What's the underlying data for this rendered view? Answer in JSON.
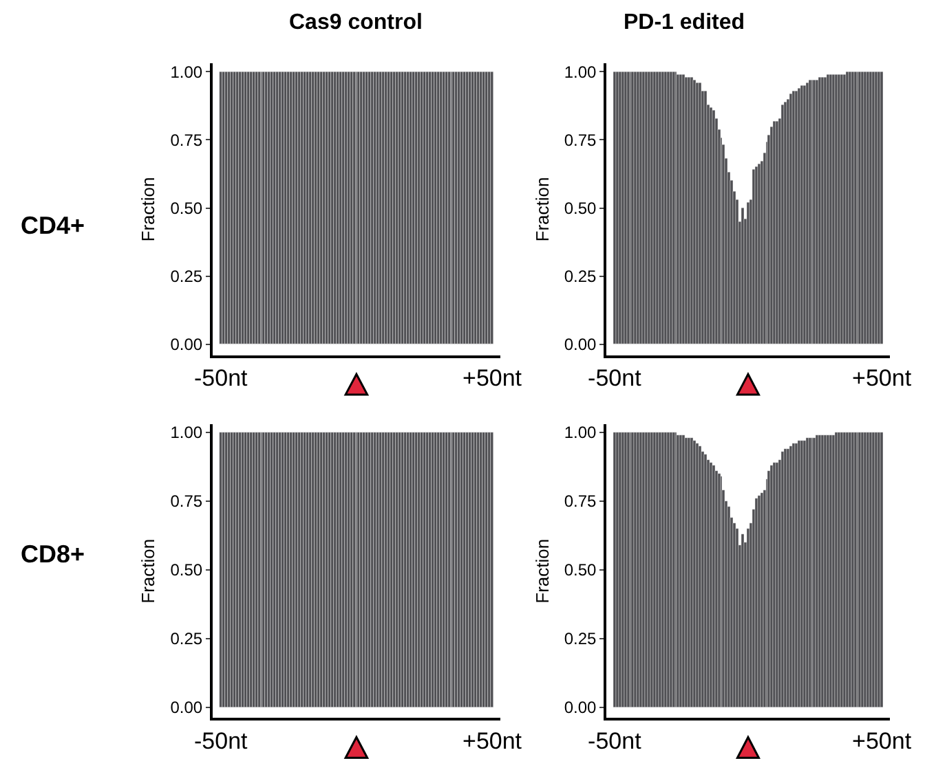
{
  "chart_data": [
    {
      "type": "bar",
      "title": "Cas9 control",
      "ylabel": "Fraction",
      "annotations": [
        "CD4+"
      ],
      "color": "#505054",
      "ylim": [
        -0.04,
        1.03
      ],
      "yticks": [
        {
          "value": 0,
          "label": "0.00"
        },
        {
          "value": 0.25,
          "label": "0.25"
        },
        {
          "value": 0.5,
          "label": "0.50"
        },
        {
          "value": 0.75,
          "label": "0.75"
        },
        {
          "value": 1,
          "label": "1.00"
        }
      ],
      "categories": [
        "-50nt",
        null,
        null,
        null,
        null,
        null,
        null,
        null,
        null,
        null,
        null,
        null,
        null,
        null,
        null,
        null,
        null,
        null,
        null,
        null,
        null,
        null,
        null,
        null,
        null,
        null,
        null,
        null,
        null,
        null,
        null,
        null,
        null,
        null,
        null,
        null,
        null,
        null,
        null,
        null,
        null,
        null,
        null,
        null,
        null,
        null,
        null,
        null,
        null,
        null,
        null,
        null,
        null,
        null,
        null,
        null,
        null,
        null,
        null,
        null,
        null,
        null,
        null,
        null,
        null,
        null,
        null,
        null,
        null,
        null,
        null,
        null,
        null,
        null,
        null,
        null,
        null,
        null,
        null,
        null,
        null,
        null,
        null,
        null,
        null,
        null,
        null,
        null,
        null,
        null,
        null,
        null,
        null,
        null,
        null,
        null,
        null,
        null,
        null,
        null,
        "+50nt"
      ],
      "values": [
        1,
        1,
        1,
        1,
        1,
        1,
        1,
        1,
        1,
        1,
        1,
        1,
        1,
        1,
        1,
        1,
        1,
        1,
        1,
        1,
        1,
        1,
        1,
        1,
        1,
        1,
        1,
        1,
        1,
        1,
        1,
        1,
        1,
        1,
        1,
        1,
        1,
        1,
        1,
        1,
        1,
        1,
        1,
        1,
        1,
        1,
        1,
        1,
        1,
        1,
        1,
        1,
        1,
        1,
        1,
        1,
        1,
        1,
        1,
        1,
        1,
        1,
        1,
        1,
        1,
        1,
        1,
        1,
        1,
        1,
        1,
        1,
        1,
        1,
        1,
        1,
        1,
        1,
        1,
        1,
        1,
        1,
        1,
        1,
        1,
        1,
        1,
        1,
        1,
        1,
        1,
        1,
        1,
        1,
        1,
        1,
        1,
        1,
        1,
        1,
        1
      ]
    },
    {
      "type": "bar",
      "title": "PD-1 edited",
      "ylabel": "Fraction",
      "color": "#505054",
      "ylim": [
        -0.04,
        1.03
      ],
      "yticks": [
        {
          "value": 0,
          "label": "0.00"
        },
        {
          "value": 0.25,
          "label": "0.25"
        },
        {
          "value": 0.5,
          "label": "0.50"
        },
        {
          "value": 0.75,
          "label": "0.75"
        },
        {
          "value": 1,
          "label": "1.00"
        }
      ],
      "categories": [
        "-50nt",
        null,
        null,
        null,
        null,
        null,
        null,
        null,
        null,
        null,
        null,
        null,
        null,
        null,
        null,
        null,
        null,
        null,
        null,
        null,
        null,
        null,
        null,
        null,
        null,
        null,
        null,
        null,
        null,
        null,
        null,
        null,
        null,
        null,
        null,
        null,
        null,
        null,
        null,
        null,
        null,
        null,
        null,
        null,
        null,
        null,
        null,
        null,
        null,
        null,
        null,
        null,
        null,
        null,
        null,
        null,
        null,
        null,
        null,
        null,
        null,
        null,
        null,
        null,
        null,
        null,
        null,
        null,
        null,
        null,
        null,
        null,
        null,
        null,
        null,
        null,
        null,
        null,
        null,
        null,
        null,
        null,
        null,
        null,
        null,
        null,
        null,
        null,
        null,
        null,
        null,
        null,
        null,
        null,
        null,
        null,
        null,
        null,
        null,
        null,
        "+50nt"
      ],
      "values": [
        1,
        1,
        1,
        1,
        1,
        1,
        1,
        1,
        1,
        1,
        1,
        1,
        1,
        1,
        1,
        1,
        1,
        1,
        1,
        1,
        1,
        1,
        1,
        1,
        0.99,
        0.99,
        0.99,
        0.98,
        0.98,
        0.98,
        0.97,
        0.96,
        0.96,
        0.93,
        0.93,
        0.88,
        0.87,
        0.86,
        0.83,
        0.79,
        0.76,
        0.73,
        0.68,
        0.63,
        0.6,
        0.56,
        0.53,
        0.45,
        0.5,
        0.46,
        0.52,
        0.53,
        0.64,
        0.65,
        0.66,
        0.67,
        0.7,
        0.74,
        0.77,
        0.8,
        0.82,
        0.82,
        0.83,
        0.88,
        0.89,
        0.9,
        0.92,
        0.93,
        0.93,
        0.94,
        0.95,
        0.95,
        0.96,
        0.97,
        0.97,
        0.97,
        0.97,
        0.98,
        0.98,
        0.98,
        0.99,
        0.99,
        0.99,
        0.99,
        0.99,
        0.99,
        0.99,
        1,
        1,
        1,
        1,
        1,
        1,
        1,
        1,
        1,
        1,
        1,
        1,
        1,
        1
      ]
    },
    {
      "type": "bar",
      "ylabel": "Fraction",
      "annotations": [
        "CD8+"
      ],
      "color": "#505054",
      "ylim": [
        -0.04,
        1.03
      ],
      "yticks": [
        {
          "value": 0,
          "label": "0.00"
        },
        {
          "value": 0.25,
          "label": "0.25"
        },
        {
          "value": 0.5,
          "label": "0.50"
        },
        {
          "value": 0.75,
          "label": "0.75"
        },
        {
          "value": 1,
          "label": "1.00"
        }
      ],
      "categories": [
        "-50nt",
        null,
        null,
        null,
        null,
        null,
        null,
        null,
        null,
        null,
        null,
        null,
        null,
        null,
        null,
        null,
        null,
        null,
        null,
        null,
        null,
        null,
        null,
        null,
        null,
        null,
        null,
        null,
        null,
        null,
        null,
        null,
        null,
        null,
        null,
        null,
        null,
        null,
        null,
        null,
        null,
        null,
        null,
        null,
        null,
        null,
        null,
        null,
        null,
        null,
        null,
        null,
        null,
        null,
        null,
        null,
        null,
        null,
        null,
        null,
        null,
        null,
        null,
        null,
        null,
        null,
        null,
        null,
        null,
        null,
        null,
        null,
        null,
        null,
        null,
        null,
        null,
        null,
        null,
        null,
        null,
        null,
        null,
        null,
        null,
        null,
        null,
        null,
        null,
        null,
        null,
        null,
        null,
        null,
        null,
        null,
        null,
        null,
        null,
        null,
        "+50nt"
      ],
      "values": [
        1,
        1,
        1,
        1,
        1,
        1,
        1,
        1,
        1,
        1,
        1,
        1,
        1,
        1,
        1,
        1,
        1,
        1,
        1,
        1,
        1,
        1,
        1,
        1,
        1,
        1,
        1,
        1,
        1,
        1,
        1,
        1,
        1,
        1,
        1,
        1,
        1,
        1,
        1,
        1,
        1,
        1,
        1,
        1,
        1,
        1,
        1,
        1,
        1,
        1,
        1,
        1,
        1,
        1,
        1,
        1,
        1,
        1,
        1,
        1,
        1,
        1,
        1,
        1,
        1,
        1,
        1,
        1,
        1,
        1,
        1,
        1,
        1,
        1,
        1,
        1,
        1,
        1,
        1,
        1,
        1,
        1,
        1,
        1,
        1,
        1,
        1,
        1,
        1,
        1,
        1,
        1,
        1,
        1,
        1,
        1,
        1,
        1,
        1,
        1,
        1
      ]
    },
    {
      "type": "bar",
      "ylabel": "Fraction",
      "color": "#505054",
      "ylim": [
        -0.04,
        1.03
      ],
      "yticks": [
        {
          "value": 0,
          "label": "0.00"
        },
        {
          "value": 0.25,
          "label": "0.25"
        },
        {
          "value": 0.5,
          "label": "0.50"
        },
        {
          "value": 0.75,
          "label": "0.75"
        },
        {
          "value": 1,
          "label": "1.00"
        }
      ],
      "categories": [
        "-50nt",
        null,
        null,
        null,
        null,
        null,
        null,
        null,
        null,
        null,
        null,
        null,
        null,
        null,
        null,
        null,
        null,
        null,
        null,
        null,
        null,
        null,
        null,
        null,
        null,
        null,
        null,
        null,
        null,
        null,
        null,
        null,
        null,
        null,
        null,
        null,
        null,
        null,
        null,
        null,
        null,
        null,
        null,
        null,
        null,
        null,
        null,
        null,
        null,
        null,
        null,
        null,
        null,
        null,
        null,
        null,
        null,
        null,
        null,
        null,
        null,
        null,
        null,
        null,
        null,
        null,
        null,
        null,
        null,
        null,
        null,
        null,
        null,
        null,
        null,
        null,
        null,
        null,
        null,
        null,
        null,
        null,
        null,
        null,
        null,
        null,
        null,
        null,
        null,
        null,
        null,
        null,
        null,
        null,
        null,
        null,
        null,
        null,
        null,
        null,
        "+50nt"
      ],
      "values": [
        1,
        1,
        1,
        1,
        1,
        1,
        1,
        1,
        1,
        1,
        1,
        1,
        1,
        1,
        1,
        1,
        1,
        1,
        1,
        1,
        1,
        1,
        1,
        1,
        0.99,
        0.99,
        0.99,
        0.98,
        0.98,
        0.98,
        0.97,
        0.96,
        0.95,
        0.93,
        0.92,
        0.9,
        0.89,
        0.88,
        0.86,
        0.85,
        0.84,
        0.79,
        0.75,
        0.73,
        0.69,
        0.67,
        0.65,
        0.59,
        0.63,
        0.6,
        0.65,
        0.67,
        0.72,
        0.76,
        0.77,
        0.78,
        0.79,
        0.83,
        0.86,
        0.88,
        0.89,
        0.89,
        0.9,
        0.93,
        0.94,
        0.94,
        0.95,
        0.96,
        0.96,
        0.97,
        0.97,
        0.97,
        0.98,
        0.98,
        0.98,
        0.98,
        0.99,
        0.99,
        0.99,
        0.99,
        0.99,
        0.99,
        0.99,
        1,
        1,
        1,
        1,
        1,
        1,
        1,
        1,
        1,
        1,
        1,
        1,
        1,
        1,
        1,
        1,
        1,
        1
      ]
    }
  ]
}
